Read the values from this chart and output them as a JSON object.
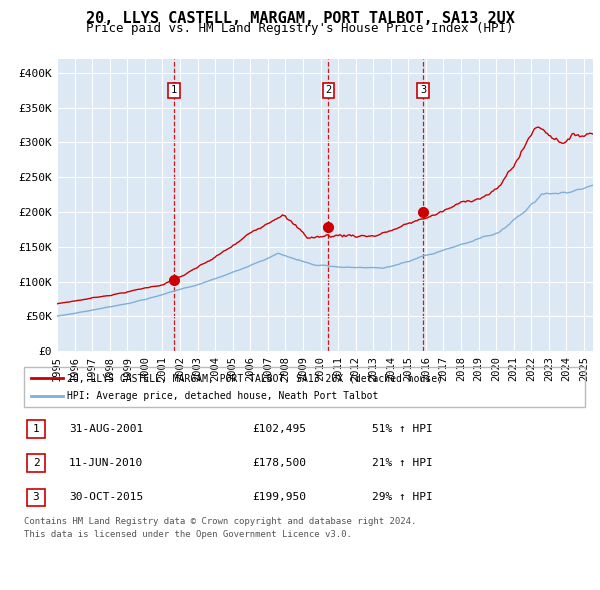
{
  "title": "20, LLYS CASTELL, MARGAM, PORT TALBOT, SA13 2UX",
  "subtitle": "Price paid vs. HM Land Registry's House Price Index (HPI)",
  "title_fontsize": 11,
  "subtitle_fontsize": 9,
  "background_color": "#dce9f5",
  "hpi_line_color": "#7fb0d8",
  "price_line_color": "#cc0000",
  "marker_color": "#cc0000",
  "ylim": [
    0,
    420000
  ],
  "yticks": [
    0,
    50000,
    100000,
    150000,
    200000,
    250000,
    300000,
    350000,
    400000
  ],
  "ytick_labels": [
    "£0",
    "£50K",
    "£100K",
    "£150K",
    "£200K",
    "£250K",
    "£300K",
    "£350K",
    "£400K"
  ],
  "xlim_start": 1995.0,
  "xlim_end": 2025.5,
  "xtick_years": [
    1995,
    1996,
    1997,
    1998,
    1999,
    2000,
    2001,
    2002,
    2003,
    2004,
    2005,
    2006,
    2007,
    2008,
    2009,
    2010,
    2011,
    2012,
    2013,
    2014,
    2015,
    2016,
    2017,
    2018,
    2019,
    2020,
    2021,
    2022,
    2023,
    2024,
    2025
  ],
  "sale_dates": [
    2001.665,
    2010.44,
    2015.832
  ],
  "sale_prices": [
    102495,
    178500,
    199950
  ],
  "sale_labels": [
    "1",
    "2",
    "3"
  ],
  "legend_house_label": "20, LLYS CASTELL, MARGAM, PORT TALBOT, SA13 2UX (detached house)",
  "legend_hpi_label": "HPI: Average price, detached house, Neath Port Talbot",
  "table_rows": [
    {
      "num": "1",
      "date": "31-AUG-2001",
      "price": "£102,495",
      "change": "51% ↑ HPI"
    },
    {
      "num": "2",
      "date": "11-JUN-2010",
      "price": "£178,500",
      "change": "21% ↑ HPI"
    },
    {
      "num": "3",
      "date": "30-OCT-2015",
      "price": "£199,950",
      "change": "29% ↑ HPI"
    }
  ],
  "footer": "Contains HM Land Registry data © Crown copyright and database right 2024.\nThis data is licensed under the Open Government Licence v3.0.",
  "grid_color": "#ffffff",
  "vline_color_red_dashed": "#cc0000",
  "vline_color_grey_dashed": "#aaaaaa"
}
